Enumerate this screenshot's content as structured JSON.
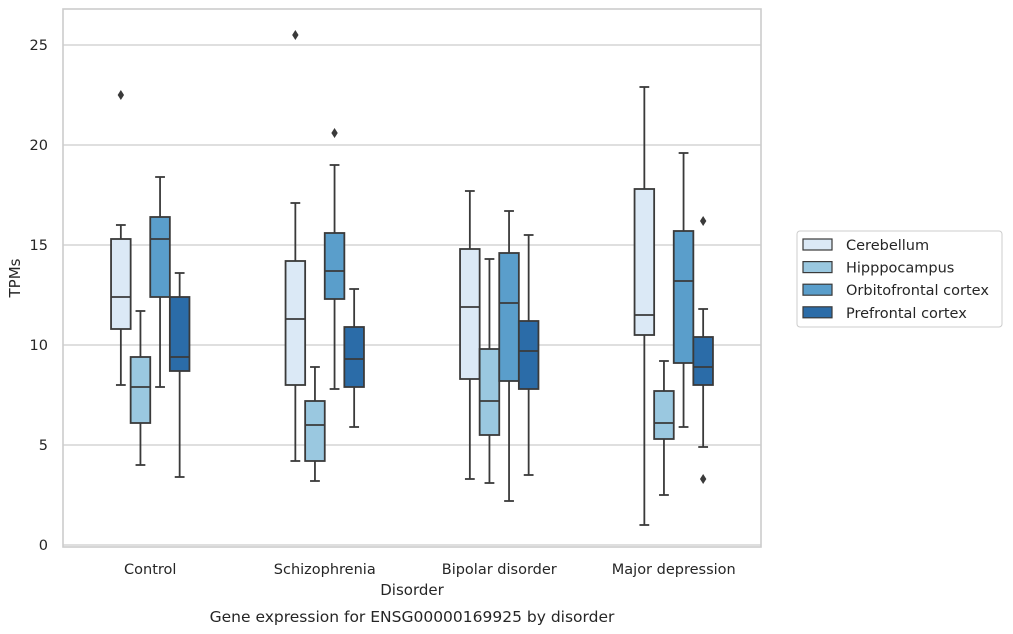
{
  "chart_data": {
    "type": "boxplot",
    "caption": "Gene expression for ENSG00000169925 by disorder",
    "xlabel": "Disorder",
    "ylabel": "TPMs",
    "ylim": [
      -0.1,
      26.8
    ],
    "yticks": [
      0,
      5,
      10,
      15,
      20,
      25
    ],
    "grid": "horizontal",
    "legend_position": "right",
    "categories": [
      "Control",
      "Schizophrenia",
      "Bipolar disorder",
      "Major depression"
    ],
    "series": [
      {
        "name": "Cerebellum",
        "color": "#dbe9f6",
        "boxes": [
          {
            "whislo": 8.0,
            "q1": 10.8,
            "med": 12.4,
            "q3": 15.3,
            "whishi": 16.0,
            "fliers": [
              22.5
            ]
          },
          {
            "whislo": 4.2,
            "q1": 8.0,
            "med": 11.3,
            "q3": 14.2,
            "whishi": 17.1,
            "fliers": [
              25.5
            ]
          },
          {
            "whislo": 3.3,
            "q1": 8.3,
            "med": 11.9,
            "q3": 14.8,
            "whishi": 17.7,
            "fliers": []
          },
          {
            "whislo": 1.0,
            "q1": 10.5,
            "med": 11.5,
            "q3": 17.8,
            "whishi": 22.9,
            "fliers": []
          }
        ]
      },
      {
        "name": "Hipppocampus",
        "color": "#9ac8e0",
        "boxes": [
          {
            "whislo": 4.0,
            "q1": 6.1,
            "med": 7.9,
            "q3": 9.4,
            "whishi": 11.7,
            "fliers": []
          },
          {
            "whislo": 3.2,
            "q1": 4.2,
            "med": 6.0,
            "q3": 7.2,
            "whishi": 8.9,
            "fliers": []
          },
          {
            "whislo": 3.1,
            "q1": 5.5,
            "med": 7.2,
            "q3": 9.8,
            "whishi": 14.3,
            "fliers": []
          },
          {
            "whislo": 2.5,
            "q1": 5.3,
            "med": 6.1,
            "q3": 7.7,
            "whishi": 9.2,
            "fliers": []
          }
        ]
      },
      {
        "name": "Orbitofrontal cortex",
        "color": "#5a9ecb",
        "boxes": [
          {
            "whislo": 7.9,
            "q1": 12.4,
            "med": 15.3,
            "q3": 16.4,
            "whishi": 18.4,
            "fliers": []
          },
          {
            "whislo": 7.8,
            "q1": 12.3,
            "med": 13.7,
            "q3": 15.6,
            "whishi": 19.0,
            "fliers": [
              20.6
            ]
          },
          {
            "whislo": 2.2,
            "q1": 8.2,
            "med": 12.1,
            "q3": 14.6,
            "whishi": 16.7,
            "fliers": []
          },
          {
            "whislo": 5.9,
            "q1": 9.1,
            "med": 13.2,
            "q3": 15.7,
            "whishi": 19.6,
            "fliers": []
          }
        ]
      },
      {
        "name": "Prefrontal cortex",
        "color": "#2b6ca8",
        "boxes": [
          {
            "whislo": 3.4,
            "q1": 8.7,
            "med": 9.4,
            "q3": 12.4,
            "whishi": 13.6,
            "fliers": []
          },
          {
            "whislo": 5.9,
            "q1": 7.9,
            "med": 9.3,
            "q3": 10.9,
            "whishi": 12.8,
            "fliers": []
          },
          {
            "whislo": 3.5,
            "q1": 7.8,
            "med": 9.7,
            "q3": 11.2,
            "whishi": 15.5,
            "fliers": []
          },
          {
            "whislo": 4.9,
            "q1": 8.0,
            "med": 8.9,
            "q3": 10.4,
            "whishi": 11.8,
            "fliers": [
              16.2,
              3.3
            ]
          }
        ]
      }
    ]
  }
}
